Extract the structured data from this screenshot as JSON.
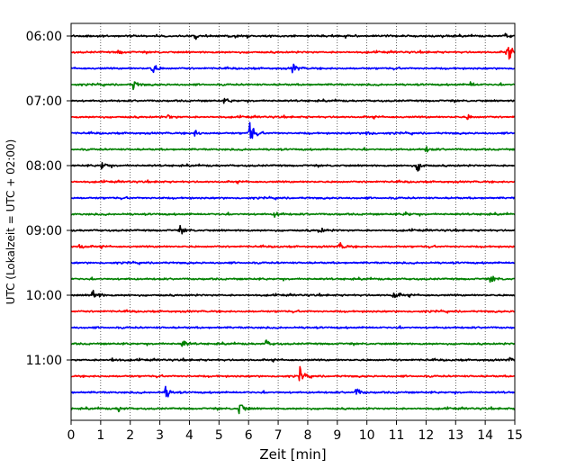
{
  "chart_data": {
    "type": "line",
    "subtype": "helicorder",
    "xlabel": "Zeit  [min]",
    "ylabel": "UTC (Lokalzeit = UTC + 02:00)",
    "xlim": [
      0,
      15
    ],
    "x_ticks": [
      0,
      1,
      2,
      3,
      4,
      5,
      6,
      7,
      8,
      9,
      10,
      11,
      12,
      13,
      14,
      15
    ],
    "y_tick_labels": [
      "06:00",
      "07:00",
      "08:00",
      "09:00",
      "10:00",
      "11:00"
    ],
    "trace_interval_min": 15,
    "first_trace_time": "06:00",
    "last_trace_time": "11:45",
    "grid": "vertical dotted",
    "series_colors": [
      "#000000",
      "#ff0000",
      "#0000ff",
      "#008000"
    ],
    "traces": [
      {
        "time": "06:00",
        "color": "#000000",
        "events": [
          [
            4.2,
            5
          ],
          [
            14.7,
            4
          ]
        ]
      },
      {
        "time": "06:15",
        "color": "#ff0000",
        "events": [
          [
            1.6,
            3
          ],
          [
            14.75,
            14
          ]
        ]
      },
      {
        "time": "06:30",
        "color": "#0000ff",
        "events": [
          [
            2.75,
            10
          ],
          [
            7.5,
            8
          ]
        ]
      },
      {
        "time": "06:45",
        "color": "#008000",
        "events": [
          [
            2.1,
            9
          ],
          [
            13.5,
            4
          ]
        ]
      },
      {
        "time": "07:00",
        "color": "#000000",
        "events": [
          [
            5.2,
            4
          ]
        ]
      },
      {
        "time": "07:15",
        "color": "#ff0000",
        "events": [
          [
            3.3,
            4
          ],
          [
            13.4,
            4
          ]
        ]
      },
      {
        "time": "07:30",
        "color": "#0000ff",
        "events": [
          [
            6.05,
            20
          ],
          [
            4.2,
            5
          ],
          [
            10.0,
            5
          ]
        ]
      },
      {
        "time": "07:45",
        "color": "#008000",
        "events": [
          [
            12.0,
            4
          ]
        ]
      },
      {
        "time": "08:00",
        "color": "#000000",
        "events": [
          [
            1.05,
            7
          ],
          [
            11.7,
            10
          ]
        ]
      },
      {
        "time": "08:15",
        "color": "#ff0000",
        "events": []
      },
      {
        "time": "08:30",
        "color": "#0000ff",
        "events": []
      },
      {
        "time": "08:45",
        "color": "#008000",
        "events": [
          [
            6.9,
            6
          ],
          [
            11.3,
            4
          ]
        ]
      },
      {
        "time": "09:00",
        "color": "#000000",
        "events": [
          [
            3.7,
            6
          ],
          [
            8.4,
            5
          ]
        ]
      },
      {
        "time": "09:15",
        "color": "#ff0000",
        "events": [
          [
            0.3,
            5
          ],
          [
            9.1,
            6
          ]
        ]
      },
      {
        "time": "09:30",
        "color": "#0000ff",
        "events": []
      },
      {
        "time": "09:45",
        "color": "#008000",
        "events": [
          [
            14.2,
            6
          ]
        ]
      },
      {
        "time": "10:00",
        "color": "#000000",
        "events": [
          [
            0.75,
            13
          ],
          [
            10.9,
            8
          ]
        ]
      },
      {
        "time": "10:15",
        "color": "#ff0000",
        "events": []
      },
      {
        "time": "10:30",
        "color": "#0000ff",
        "events": []
      },
      {
        "time": "10:45",
        "color": "#008000",
        "events": [
          [
            3.75,
            8
          ],
          [
            6.6,
            5
          ]
        ]
      },
      {
        "time": "11:00",
        "color": "#000000",
        "events": [
          [
            1.4,
            4
          ],
          [
            14.8,
            3
          ]
        ]
      },
      {
        "time": "11:15",
        "color": "#ff0000",
        "events": [
          [
            7.75,
            12
          ]
        ]
      },
      {
        "time": "11:30",
        "color": "#0000ff",
        "events": [
          [
            3.2,
            10
          ],
          [
            9.65,
            7
          ]
        ]
      },
      {
        "time": "11:45",
        "color": "#008000",
        "events": [
          [
            5.7,
            14
          ],
          [
            1.6,
            5
          ]
        ]
      }
    ]
  }
}
